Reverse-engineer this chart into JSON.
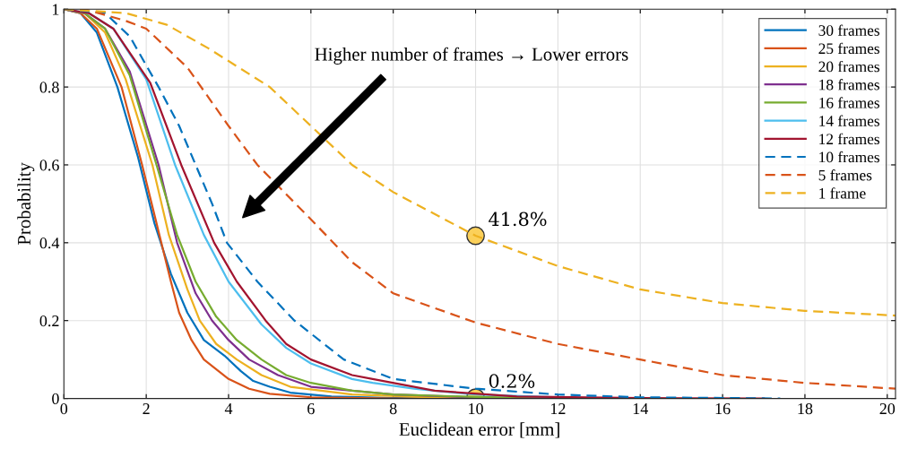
{
  "chart_data": {
    "type": "line",
    "xlabel": "Euclidean error [mm]",
    "ylabel": "Probability",
    "xlim": [
      0,
      20.2
    ],
    "ylim": [
      0,
      1
    ],
    "xticks": [
      0,
      2,
      4,
      6,
      8,
      10,
      12,
      14,
      16,
      18,
      20
    ],
    "yticks": [
      0,
      0.2,
      0.4,
      0.6,
      0.8,
      1
    ],
    "grid": true,
    "legend": "top right",
    "marker": "none",
    "series": [
      {
        "name": "30 frames",
        "color": "#0072bd",
        "line_style": "solid",
        "x": [
          0,
          0.4,
          0.8,
          1.3,
          1.8,
          2.2,
          2.6,
          3.0,
          3.4,
          3.9,
          4.3,
          4.6,
          5.0,
          5.5,
          6.5,
          8,
          10,
          12
        ],
        "values": [
          1,
          0.99,
          0.94,
          0.8,
          0.62,
          0.45,
          0.32,
          0.22,
          0.15,
          0.11,
          0.07,
          0.045,
          0.03,
          0.015,
          0.005,
          0.001,
          0,
          0
        ]
      },
      {
        "name": "25 frames",
        "color": "#d95319",
        "line_style": "solid",
        "x": [
          0,
          0.4,
          0.8,
          1.4,
          1.9,
          2.25,
          2.6,
          2.8,
          3.1,
          3.4,
          4.0,
          4.5,
          5.0,
          6,
          8,
          10,
          12
        ],
        "values": [
          1,
          0.99,
          0.95,
          0.8,
          0.6,
          0.45,
          0.3,
          0.22,
          0.15,
          0.1,
          0.05,
          0.025,
          0.012,
          0.003,
          0,
          0,
          0
        ]
      },
      {
        "name": "20 frames",
        "color": "#edb120",
        "line_style": "solid",
        "x": [
          0,
          0.5,
          1.0,
          1.5,
          2.15,
          2.55,
          3.0,
          3.3,
          3.7,
          4.2,
          4.8,
          5.5,
          7,
          9,
          11
        ],
        "values": [
          1,
          0.99,
          0.94,
          0.82,
          0.6,
          0.42,
          0.28,
          0.2,
          0.14,
          0.1,
          0.06,
          0.03,
          0.01,
          0.003,
          0
        ]
      },
      {
        "name": "18 frames",
        "color": "#7e2f8e",
        "line_style": "solid",
        "x": [
          0,
          0.5,
          1.0,
          1.6,
          2.3,
          2.75,
          3.2,
          3.6,
          4.0,
          4.5,
          5.2,
          6,
          8,
          10,
          12
        ],
        "values": [
          1,
          0.99,
          0.95,
          0.84,
          0.6,
          0.4,
          0.27,
          0.2,
          0.15,
          0.1,
          0.06,
          0.03,
          0.01,
          0.003,
          0
        ]
      },
      {
        "name": "16 frames",
        "color": "#77ac30",
        "line_style": "solid",
        "x": [
          0,
          0.5,
          1.0,
          1.6,
          2.25,
          2.75,
          3.2,
          3.7,
          4.2,
          4.8,
          5.4,
          6,
          7,
          8,
          10,
          12
        ],
        "values": [
          1,
          0.99,
          0.95,
          0.83,
          0.6,
          0.42,
          0.3,
          0.21,
          0.15,
          0.1,
          0.06,
          0.04,
          0.02,
          0.01,
          0.004,
          0
        ]
      },
      {
        "name": "14 frames",
        "color": "#4dbeee",
        "line_style": "solid",
        "x": [
          0,
          0.6,
          1.2,
          2.0,
          2.7,
          3.4,
          4.0,
          4.8,
          5.4,
          6,
          7,
          7.5,
          8.5,
          10,
          12
        ],
        "values": [
          1,
          0.99,
          0.95,
          0.82,
          0.6,
          0.42,
          0.3,
          0.19,
          0.13,
          0.09,
          0.05,
          0.04,
          0.025,
          0.01,
          0.003
        ]
      },
      {
        "name": "12 frames",
        "color": "#a2142f",
        "line_style": "solid",
        "x": [
          0,
          0.6,
          1.2,
          2.1,
          2.85,
          3.65,
          4.2,
          4.9,
          5.4,
          6,
          7,
          7.5,
          9,
          11,
          14,
          17
        ],
        "values": [
          1,
          0.99,
          0.95,
          0.81,
          0.6,
          0.4,
          0.3,
          0.2,
          0.14,
          0.1,
          0.06,
          0.05,
          0.02,
          0.005,
          0.001,
          0
        ]
      },
      {
        "name": "10 frames",
        "color": "#0072bd",
        "line_style": "dashed",
        "x": [
          0,
          1.0,
          1.6,
          2.3,
          2.8,
          3.2,
          3.6,
          3.96,
          4.7,
          5.6,
          6.8,
          8,
          10,
          12,
          14,
          17.4
        ],
        "values": [
          1,
          0.99,
          0.93,
          0.8,
          0.7,
          0.6,
          0.5,
          0.4,
          0.3,
          0.2,
          0.1,
          0.05,
          0.025,
          0.01,
          0.003,
          0
        ]
      },
      {
        "name": "5 frames",
        "color": "#d95319",
        "line_style": "dashed",
        "x": [
          0,
          0.5,
          1.5,
          2,
          3,
          4,
          4.7,
          6,
          7,
          8,
          10,
          12,
          14,
          16,
          18,
          20.2
        ],
        "values": [
          1,
          1,
          0.97,
          0.95,
          0.85,
          0.7,
          0.6,
          0.46,
          0.35,
          0.27,
          0.195,
          0.14,
          0.1,
          0.06,
          0.04,
          0.025
        ]
      },
      {
        "name": "1 frame",
        "color": "#edb120",
        "line_style": "dashed",
        "x": [
          0,
          1.5,
          2.5,
          3.5,
          5,
          6,
          7,
          8,
          10,
          12,
          14,
          16,
          18,
          20.2
        ],
        "values": [
          1,
          0.99,
          0.96,
          0.9,
          0.8,
          0.7,
          0.6,
          0.53,
          0.418,
          0.34,
          0.28,
          0.245,
          0.225,
          0.213
        ]
      }
    ],
    "annotations": [
      "Higher number of frames → Lower errors",
      {
        "text": "41.8%",
        "x": 10,
        "y": 0.418
      },
      {
        "text": "0.2%",
        "x": 10,
        "y": 0.002
      }
    ]
  }
}
